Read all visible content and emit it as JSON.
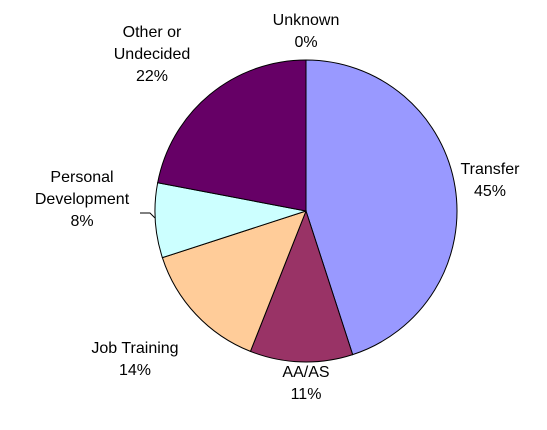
{
  "chart_data": {
    "type": "pie",
    "categories": [
      "Transfer",
      "AA/AS",
      "Job Training",
      "Personal Development",
      "Other or Undecided",
      "Unknown"
    ],
    "values": [
      45,
      11,
      14,
      8,
      22,
      0
    ],
    "value_labels": [
      "45%",
      "11%",
      "14%",
      "8%",
      "22%",
      "0%"
    ],
    "colors": [
      "#9999ff",
      "#993366",
      "#ffcc99",
      "#ccffff",
      "#660066",
      "#ffffcc"
    ]
  }
}
